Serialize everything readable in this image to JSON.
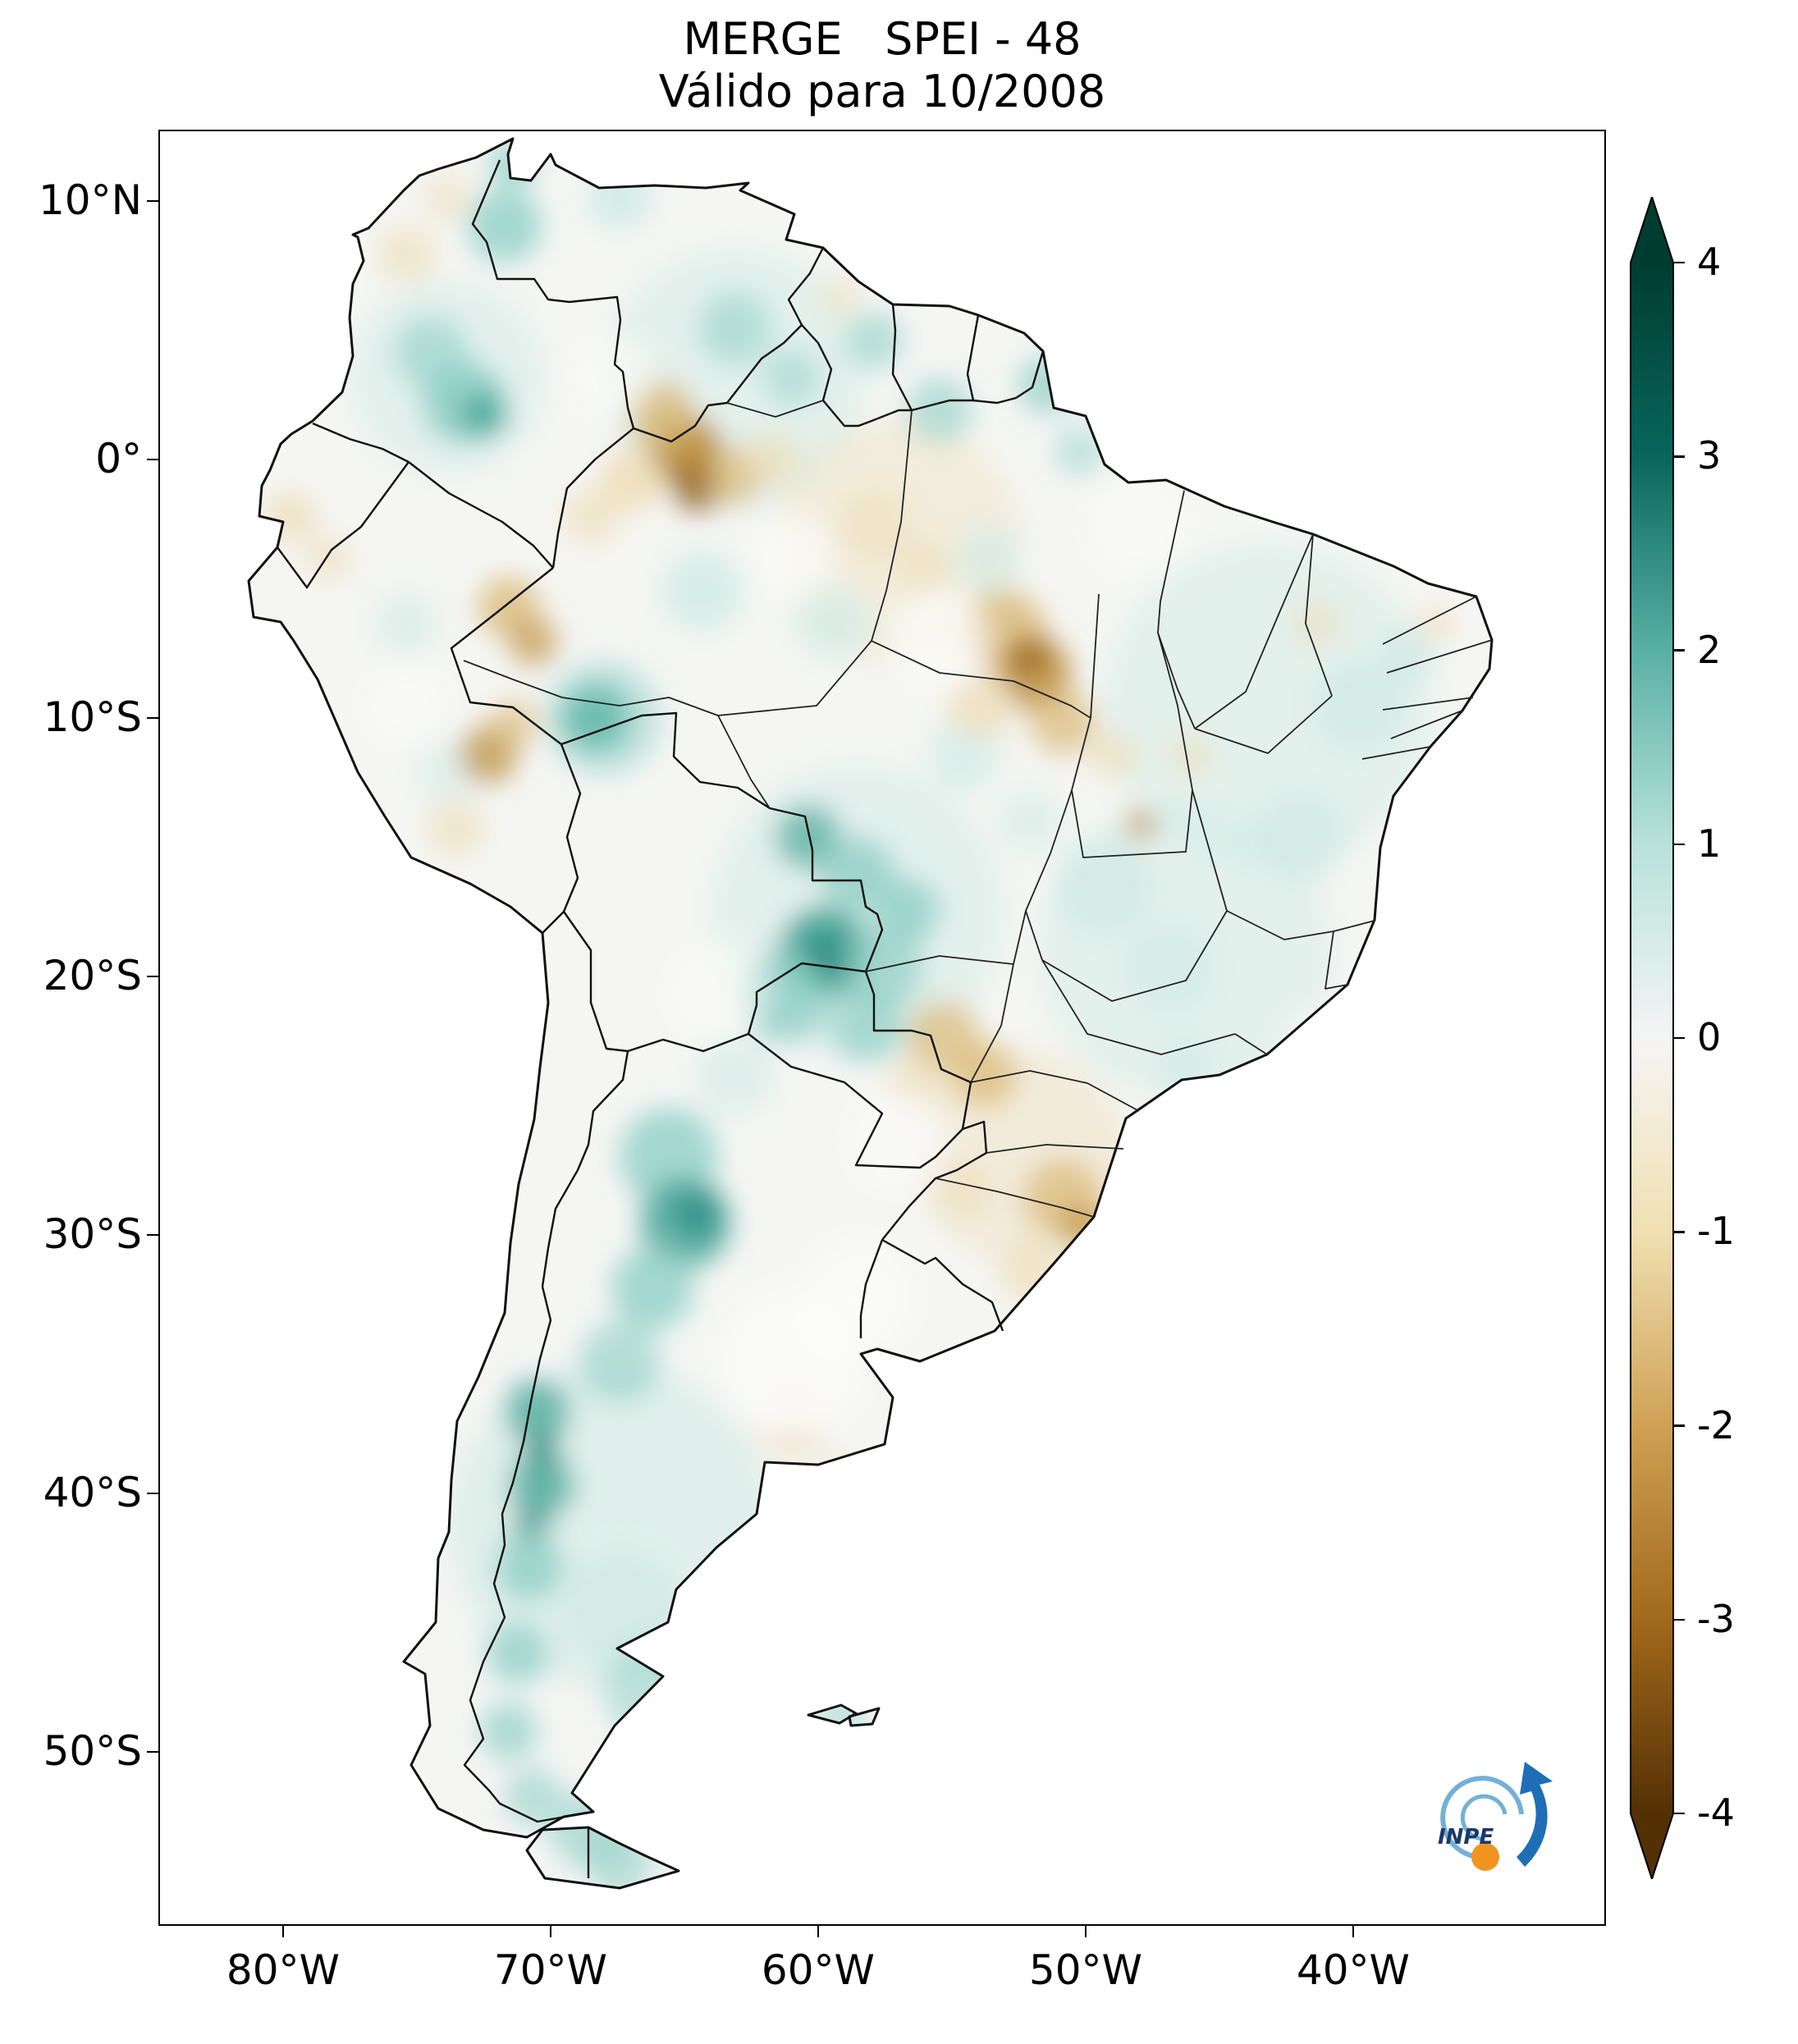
{
  "title": {
    "line1": "MERGE   SPEI - 48",
    "line2": "Válido para 10/2008"
  },
  "map": {
    "region": "South America",
    "x_axis": {
      "ticks": [
        {
          "label": "80°W",
          "lon": -80
        },
        {
          "label": "70°W",
          "lon": -70
        },
        {
          "label": "60°W",
          "lon": -60
        },
        {
          "label": "50°W",
          "lon": -50
        },
        {
          "label": "40°W",
          "lon": -40
        }
      ]
    },
    "y_axis": {
      "ticks": [
        {
          "label": "10°N",
          "lat": 10
        },
        {
          "label": "0°",
          "lat": 0
        },
        {
          "label": "10°S",
          "lat": -10
        },
        {
          "label": "20°S",
          "lat": -20
        },
        {
          "label": "30°S",
          "lat": -30
        },
        {
          "label": "40°S",
          "lat": -40
        },
        {
          "label": "50°S",
          "lat": -50
        }
      ]
    }
  },
  "colorbar": {
    "min": -4,
    "max": 4,
    "ticks": [
      4,
      3,
      2,
      1,
      0,
      -1,
      -2,
      -3,
      -4
    ],
    "stops": [
      {
        "value": 4,
        "color": "#003c30"
      },
      {
        "value": 3,
        "color": "#08665c"
      },
      {
        "value": 2,
        "color": "#59b0a5"
      },
      {
        "value": 1,
        "color": "#b8e2da"
      },
      {
        "value": 0,
        "color": "#f5f5f5"
      },
      {
        "value": -1,
        "color": "#f0e0b2"
      },
      {
        "value": -2,
        "color": "#cfa155"
      },
      {
        "value": -3,
        "color": "#a2691b"
      },
      {
        "value": -4,
        "color": "#543005"
      }
    ]
  },
  "logo": {
    "text": "INPE"
  },
  "chart_data": {
    "type": "heatmap",
    "title": "MERGE   SPEI - 48",
    "subtitle": "Válido para 10/2008",
    "variable": "SPEI - 48",
    "region": "South America",
    "x_ticks": [
      "80°W",
      "70°W",
      "60°W",
      "50°W",
      "40°W"
    ],
    "y_ticks": [
      "10°N",
      "0°",
      "10°S",
      "20°S",
      "30°S",
      "40°S",
      "50°S"
    ],
    "colorbar_ticks": [
      4,
      3,
      2,
      1,
      0,
      -1,
      -2,
      -3,
      -4
    ],
    "colorbar_range": [
      -4,
      4
    ],
    "colormap": "brown-white-teal diverging (brown = dry, teal = wet)",
    "wet_anomaly_regions": [
      "Andes along Chile-Argentina border, ~+1 to +2",
      "Northwest Argentina, ~+2",
      "Bolivian lowlands and Mato Grosso, ~+1 to +2",
      "Central Colombia, ~+2",
      "Western Amazonas (Brazil), local ~+2",
      "Patagonia, ~+1"
    ],
    "dry_anomaly_regions": [
      "Northwest Amazon near Colombia/Venezuela/Brazil border, ~-2 to -3",
      "Eastern Pará / Tocantins (Brazil), ~-2",
      "Southwest Amazon / Madre de Dios (Peru), ~-2",
      "Eastern Paraguay, ~-1",
      "Rio Grande do Sul / Santa Catarina (Brazil), ~-1 to -2"
    ]
  }
}
